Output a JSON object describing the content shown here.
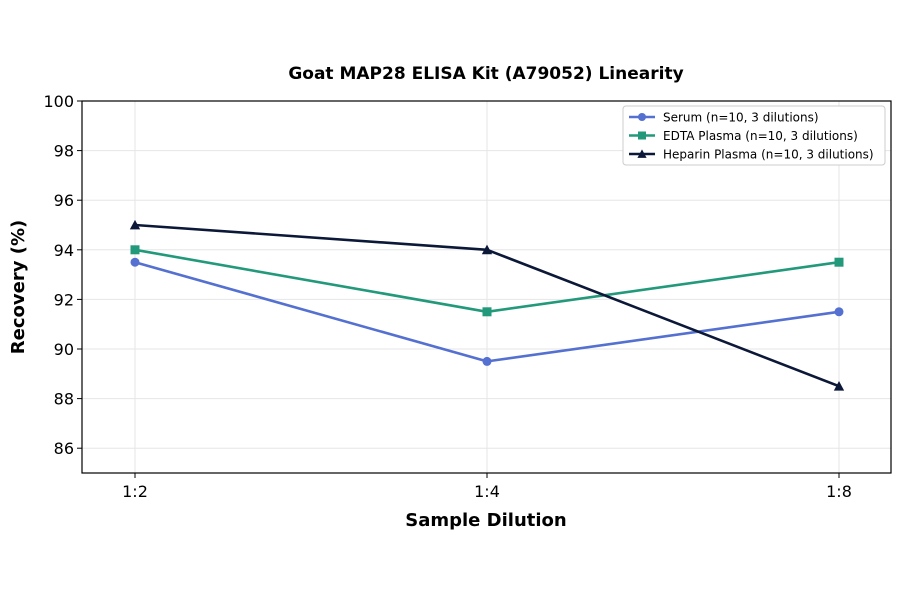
{
  "chart_data": {
    "type": "line",
    "title": "Goat MAP28 ELISA Kit (A79052) Linearity",
    "xlabel": "Sample Dilution",
    "ylabel": "Recovery (%)",
    "categories": [
      "1:2",
      "1:4",
      "1:8"
    ],
    "ylim": [
      85,
      100
    ],
    "yticks": [
      86,
      88,
      90,
      92,
      94,
      96,
      98,
      100
    ],
    "grid": true,
    "legend_position": "top-right",
    "series": [
      {
        "name": "Serum (n=10, 3 dilutions)",
        "values": [
          93.5,
          89.5,
          91.5
        ],
        "color": "#5470d0",
        "marker": "circle"
      },
      {
        "name": "EDTA Plasma (n=10, 3 dilutions)",
        "values": [
          94.0,
          91.5,
          93.5
        ],
        "color": "#22997a",
        "marker": "square"
      },
      {
        "name": "Heparin Plasma (n=10, 3 dilutions)",
        "values": [
          95.0,
          94.0,
          88.5
        ],
        "color": "#0c1838",
        "marker": "triangle"
      }
    ]
  }
}
